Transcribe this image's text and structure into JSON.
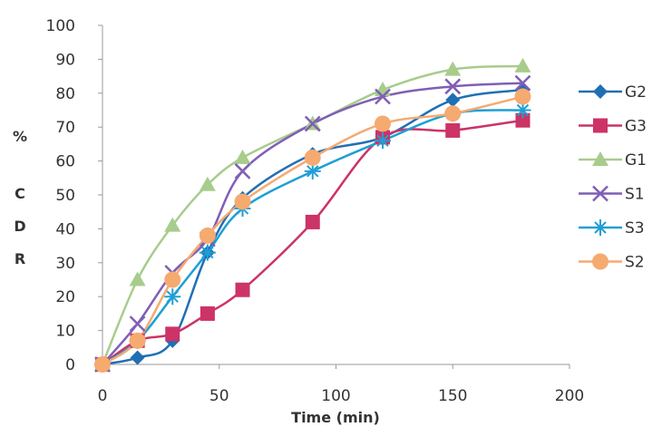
{
  "chart_data": {
    "type": "line",
    "title": "",
    "xlabel": "Time  (min)",
    "ylabel_chars": [
      "%",
      "C",
      "D",
      "R"
    ],
    "xlim": [
      0,
      200
    ],
    "ylim": [
      0,
      100
    ],
    "xticks": [
      0,
      50,
      100,
      150,
      200
    ],
    "yticks": [
      0,
      10,
      20,
      30,
      40,
      50,
      60,
      70,
      80,
      90,
      100
    ],
    "x": [
      0,
      15,
      30,
      45,
      60,
      90,
      120,
      150,
      180
    ],
    "grid": false,
    "legend_position": "right",
    "series": [
      {
        "name": "G2",
        "color": "#1f6fb5",
        "marker": "diamond",
        "values": [
          0,
          2,
          7,
          33,
          49,
          62,
          67,
          78,
          81
        ]
      },
      {
        "name": "G3",
        "color": "#cc3366",
        "marker": "square",
        "values": [
          0,
          7,
          9,
          15,
          22,
          42,
          67,
          69,
          72
        ]
      },
      {
        "name": "G1",
        "color": "#a8cc8c",
        "marker": "triangle",
        "values": [
          0,
          25,
          41,
          53,
          61,
          71,
          81,
          87,
          88
        ]
      },
      {
        "name": "S1",
        "color": "#7f5fb5",
        "marker": "x",
        "values": [
          0,
          12,
          27,
          37,
          57,
          71,
          79,
          82,
          83
        ]
      },
      {
        "name": "S3",
        "color": "#1f9fd5",
        "marker": "star",
        "values": [
          0,
          7,
          20,
          33,
          46,
          57,
          66,
          74,
          75
        ]
      },
      {
        "name": "S2",
        "color": "#f5aa70",
        "marker": "circle",
        "values": [
          0,
          7,
          25,
          38,
          48,
          61,
          71,
          74,
          79
        ]
      }
    ]
  }
}
